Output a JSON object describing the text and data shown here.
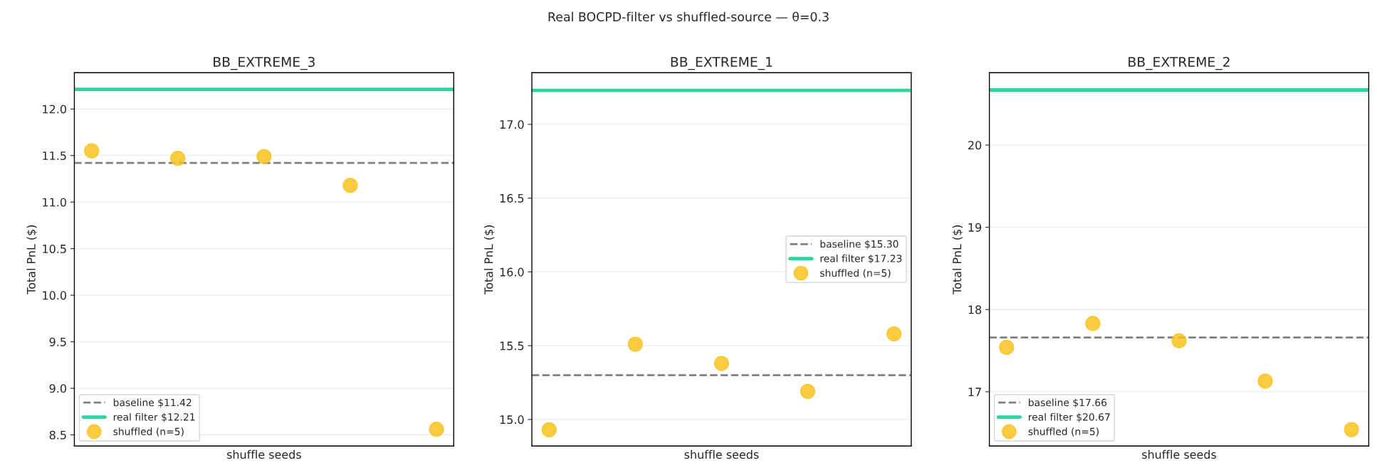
{
  "chart_data": [
    {
      "type": "scatter",
      "title": "BB_EXTREME_3",
      "xlabel": "shuffle seeds",
      "ylabel": "Total PnL ($)",
      "annotations": [
        "Real BOCPD-filter vs shuffled-source — θ=0.3"
      ],
      "categories": [
        null,
        null,
        null,
        null,
        null
      ],
      "series": [
        {
          "name": "shuffled (n=5)",
          "color": "#f8c21c",
          "values": [
            11.55,
            11.47,
            11.49,
            11.18,
            8.56
          ]
        }
      ],
      "ref_lines": [
        {
          "axis": "y",
          "value": 11.42,
          "label": "baseline $11.42",
          "color": "#808080",
          "line_style": "dashed"
        },
        {
          "axis": "y",
          "value": 12.21,
          "label": "real filter $12.21",
          "color": "#2ed3a0",
          "line_style": "solid"
        }
      ],
      "ylim": [
        8.38,
        12.39
      ],
      "yticks": [
        8.5,
        {
          "value": 9,
          "label": "9.0"
        },
        9.5,
        {
          "value": 10,
          "label": "10.0"
        },
        10.5,
        {
          "value": 11,
          "label": "11.0"
        },
        11.5,
        {
          "value": 12,
          "label": "12.0"
        }
      ],
      "tick_labels": "y",
      "grid": "y",
      "legend": "bottom left",
      "marker": "circle"
    },
    {
      "type": "scatter",
      "title": "BB_EXTREME_1",
      "xlabel": "shuffle seeds",
      "ylabel": "Total PnL ($)",
      "categories": [
        null,
        null,
        null,
        null,
        null
      ],
      "series": [
        {
          "name": "shuffled (n=5)",
          "color": "#f8c21c",
          "values": [
            14.93,
            15.51,
            15.38,
            15.19,
            15.58
          ]
        }
      ],
      "ref_lines": [
        {
          "axis": "y",
          "value": 15.3,
          "label": "baseline $15.30",
          "color": "#808080",
          "line_style": "dashed"
        },
        {
          "axis": "y",
          "value": 17.23,
          "label": "real filter $17.23",
          "color": "#2ed3a0",
          "line_style": "solid"
        }
      ],
      "ylim": [
        14.82,
        17.35
      ],
      "yticks": [
        {
          "value": 15,
          "label": "15.0"
        },
        15.5,
        {
          "value": 16,
          "label": "16.0"
        },
        16.5,
        {
          "value": 17,
          "label": "17.0"
        }
      ],
      "tick_labels": "y",
      "grid": "y",
      "legend": "right",
      "marker": "circle"
    },
    {
      "type": "scatter",
      "title": "BB_EXTREME_2",
      "xlabel": "shuffle seeds",
      "ylabel": "Total PnL ($)",
      "categories": [
        null,
        null,
        null,
        null,
        null
      ],
      "series": [
        {
          "name": "shuffled (n=5)",
          "color": "#f8c21c",
          "values": [
            17.54,
            17.83,
            17.62,
            17.13,
            16.54
          ]
        }
      ],
      "ref_lines": [
        {
          "axis": "y",
          "value": 17.66,
          "label": "baseline $17.66",
          "color": "#808080",
          "line_style": "dashed"
        },
        {
          "axis": "y",
          "value": 20.67,
          "label": "real filter $20.67",
          "color": "#2ed3a0",
          "line_style": "solid"
        }
      ],
      "ylim": [
        16.34,
        20.88
      ],
      "yticks": [
        17,
        18,
        19,
        20
      ],
      "tick_labels": "y",
      "grid": "y",
      "legend": "bottom left",
      "marker": "circle"
    }
  ]
}
